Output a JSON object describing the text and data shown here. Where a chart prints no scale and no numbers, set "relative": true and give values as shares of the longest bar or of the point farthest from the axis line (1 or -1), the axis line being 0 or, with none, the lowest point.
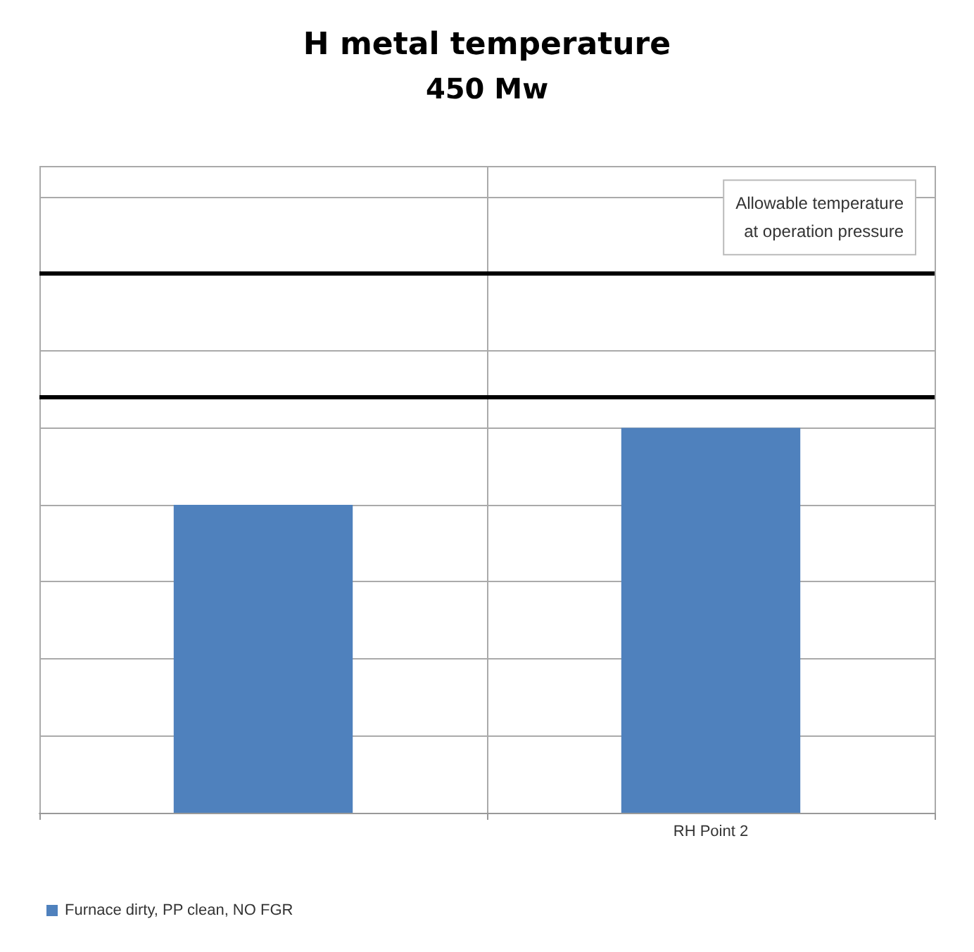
{
  "chart_data": {
    "type": "bar",
    "title": "H metal temperature",
    "subtitle": "450 Mw",
    "categories": [
      null,
      "RH Point 2"
    ],
    "relative": true,
    "series": [
      {
        "name": "Furnace dirty, PP clean, NO FGR",
        "color": "#4f81bd",
        "values": [
          0.8,
          1
        ]
      }
    ],
    "ref_lines": [
      {
        "axis": "y",
        "value": 1.08,
        "label": null,
        "color": "#000000"
      },
      {
        "axis": "y",
        "value": 1.4,
        "label": "Allowable temperature\nat operation pressure",
        "color": "#000000"
      }
    ],
    "grid": true,
    "legend": "bottom left"
  }
}
